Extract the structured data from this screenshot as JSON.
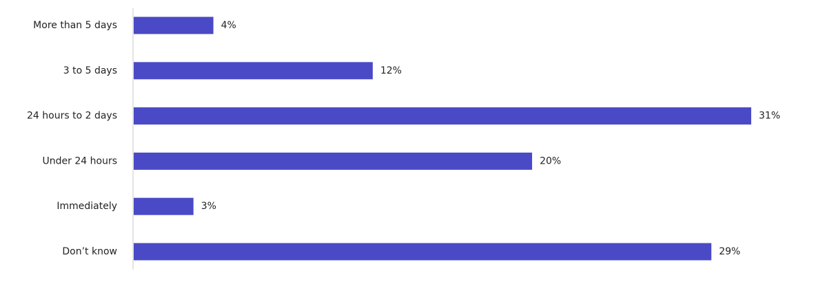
{
  "chart_data": {
    "type": "hbar",
    "categories": [
      "More than 5 days",
      "3 to 5 days",
      "24 hours to 2 days",
      "Under 24 hours",
      "Immediately",
      "Don’t know"
    ],
    "values": [
      4,
      12,
      31,
      20,
      3,
      29
    ],
    "value_labels": [
      "4%",
      "12%",
      "31%",
      "20%",
      "3%",
      "29%"
    ],
    "color": "#4a4ac6"
  }
}
